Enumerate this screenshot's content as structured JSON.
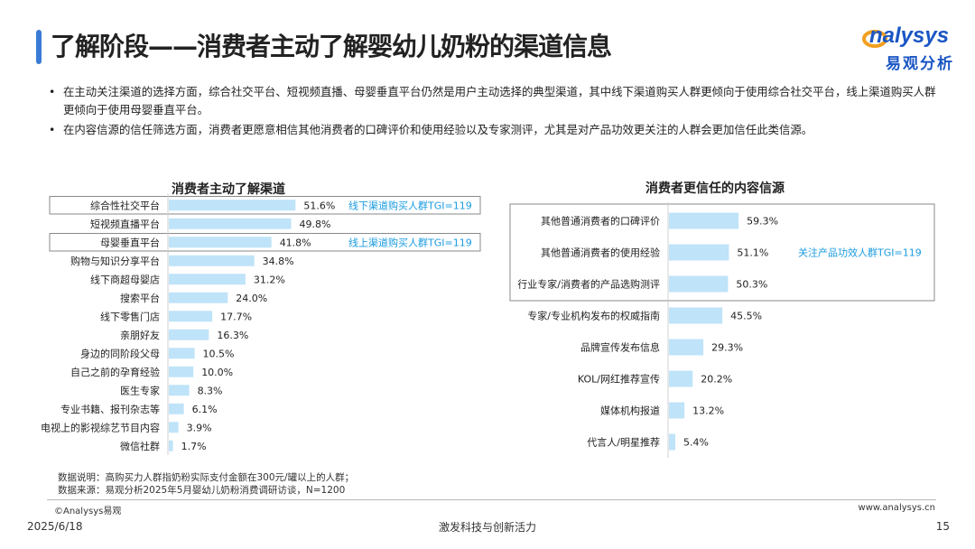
{
  "header": {
    "title": "了解阶段——消费者主动了解婴幼儿奶粉的渠道信息",
    "accent_color": "#3a7bd5"
  },
  "logo": {
    "text_en": "nalysys",
    "text_cn": "易观分析",
    "color_blue": "#1a56c4",
    "color_orange": "#f0a020"
  },
  "bullets": [
    "在主动关注渠道的选择方面，综合社交平台、短视频直播、母婴垂直平台仍然是用户主动选择的典型渠道，其中线下渠道购买人群更倾向于使用综合社交平台，线上渠道购买人群更倾向于使用母婴垂直平台。",
    "在内容信源的信任筛选方面，消费者更愿意相信其他消费者的口碑评价和使用经验以及专家测评，尤其是对产品功效更关注的人群会更加信任此类信源。"
  ],
  "chart_data": [
    {
      "type": "bar",
      "orientation": "horizontal",
      "title": "消费者主动了解渠道",
      "categories": [
        "综合性社交平台",
        "短视频直播平台",
        "母婴垂直平台",
        "购物与知识分享平台",
        "线下商超母婴店",
        "搜索平台",
        "线下零售门店",
        "亲朋好友",
        "身边的同阶段父母",
        "自己之前的孕育经验",
        "医生专家",
        "专业书籍、报刊杂志等",
        "电视上的影视综艺节目内容",
        "微信社群"
      ],
      "values": [
        51.6,
        49.8,
        41.8,
        34.8,
        31.2,
        24.0,
        17.7,
        16.3,
        10.5,
        10.0,
        8.3,
        6.1,
        3.9,
        1.7
      ],
      "value_labels": [
        "51.6%",
        "49.8%",
        "41.8%",
        "34.8%",
        "31.2%",
        "24.0%",
        "17.7%",
        "16.3%",
        "10.5%",
        "10.0%",
        "8.3%",
        "6.1%",
        "3.9%",
        "1.7%"
      ],
      "bar_color": "#bfe3f8",
      "xlim": [
        0,
        100
      ],
      "annotations": [
        {
          "category_index": 0,
          "text": "线下渠道购买人群TGI=119"
        },
        {
          "category_index": 2,
          "text": "线上渠道购买人群TGI=119"
        }
      ],
      "annotation_color": "#1a9be0"
    },
    {
      "type": "bar",
      "orientation": "horizontal",
      "title": "消费者更信任的内容信源",
      "categories": [
        "其他普通消费者的口碑评价",
        "其他普通消费者的使用经验",
        "行业专家/消费者的产品选购测评",
        "专家/专业机构发布的权威指南",
        "品牌宣传发布信息",
        "KOL/网红推荐宣传",
        "媒体机构报道",
        "代言人/明星推荐"
      ],
      "values": [
        59.3,
        51.1,
        50.3,
        45.5,
        29.3,
        20.2,
        13.2,
        5.4
      ],
      "value_labels": [
        "59.3%",
        "51.1%",
        "50.3%",
        "45.5%",
        "29.3%",
        "20.2%",
        "13.2%",
        "5.4%"
      ],
      "bar_color": "#bfe3f8",
      "xlim": [
        0,
        100
      ],
      "annotations": [
        {
          "category_span": [
            0,
            2
          ],
          "text": "关注产品功效人群TGI=119"
        }
      ],
      "annotation_color": "#1a9be0"
    }
  ],
  "notes": {
    "line1": "数据说明：高购买力人群指奶粉实际支付金额在300元/罐以上的人群；",
    "line2": "数据来源：易观分析2025年5月婴幼儿奶粉消费调研访谈，N=1200"
  },
  "footer": {
    "copyright": "©Analysys易观",
    "website": "www.analysys.cn",
    "date": "2025/6/18",
    "slogan": "激发科技与创新活力",
    "page": "15"
  }
}
